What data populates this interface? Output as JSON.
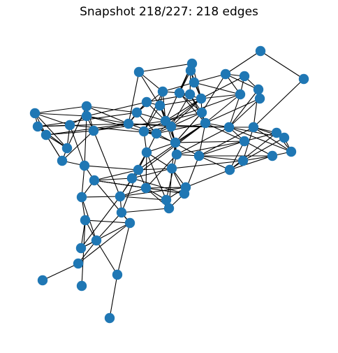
{
  "figure": {
    "title": "Snapshot 218/227: 218 edges"
  },
  "style": {
    "node_color": "#1f77b4",
    "edge_color": "#000000",
    "background": "#ffffff"
  }
}
